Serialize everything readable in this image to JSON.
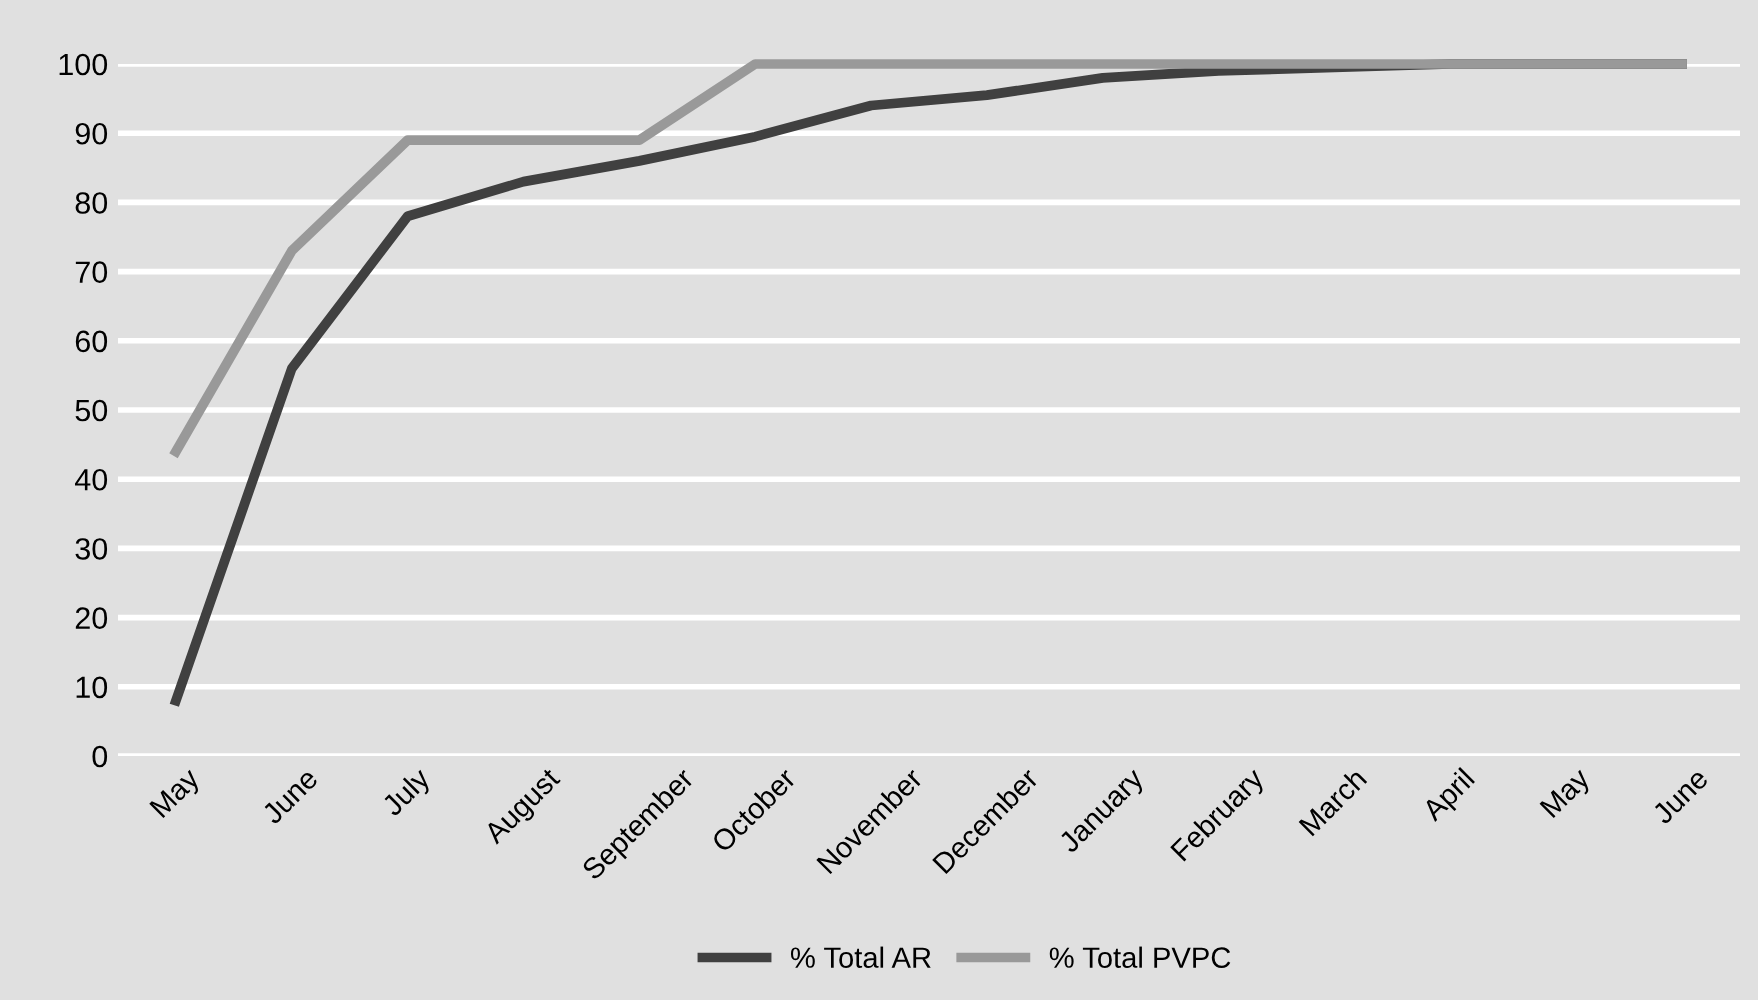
{
  "chart_data": {
    "type": "line",
    "categories": [
      "May",
      "June",
      "July",
      "August",
      "September",
      "October",
      "November",
      "December",
      "January",
      "February",
      "March",
      "April",
      "May",
      "June"
    ],
    "series": [
      {
        "name": "% Total AR",
        "color": "#404040",
        "values": [
          8,
          56,
          78,
          83,
          86,
          89.5,
          94,
          95.5,
          98,
          99,
          99.5,
          100,
          100,
          100
        ]
      },
      {
        "name": "% Total PVPC",
        "color": "#999999",
        "values": [
          44,
          73,
          89,
          89,
          89,
          100,
          100,
          100,
          100,
          100,
          100,
          100,
          100,
          100
        ]
      }
    ],
    "ylim": [
      0,
      100
    ],
    "yticks": [
      0,
      10,
      20,
      30,
      40,
      50,
      60,
      70,
      80,
      90,
      100
    ],
    "grid": "y",
    "legend": "bottom",
    "marker": "none",
    "line_style": "solid"
  }
}
